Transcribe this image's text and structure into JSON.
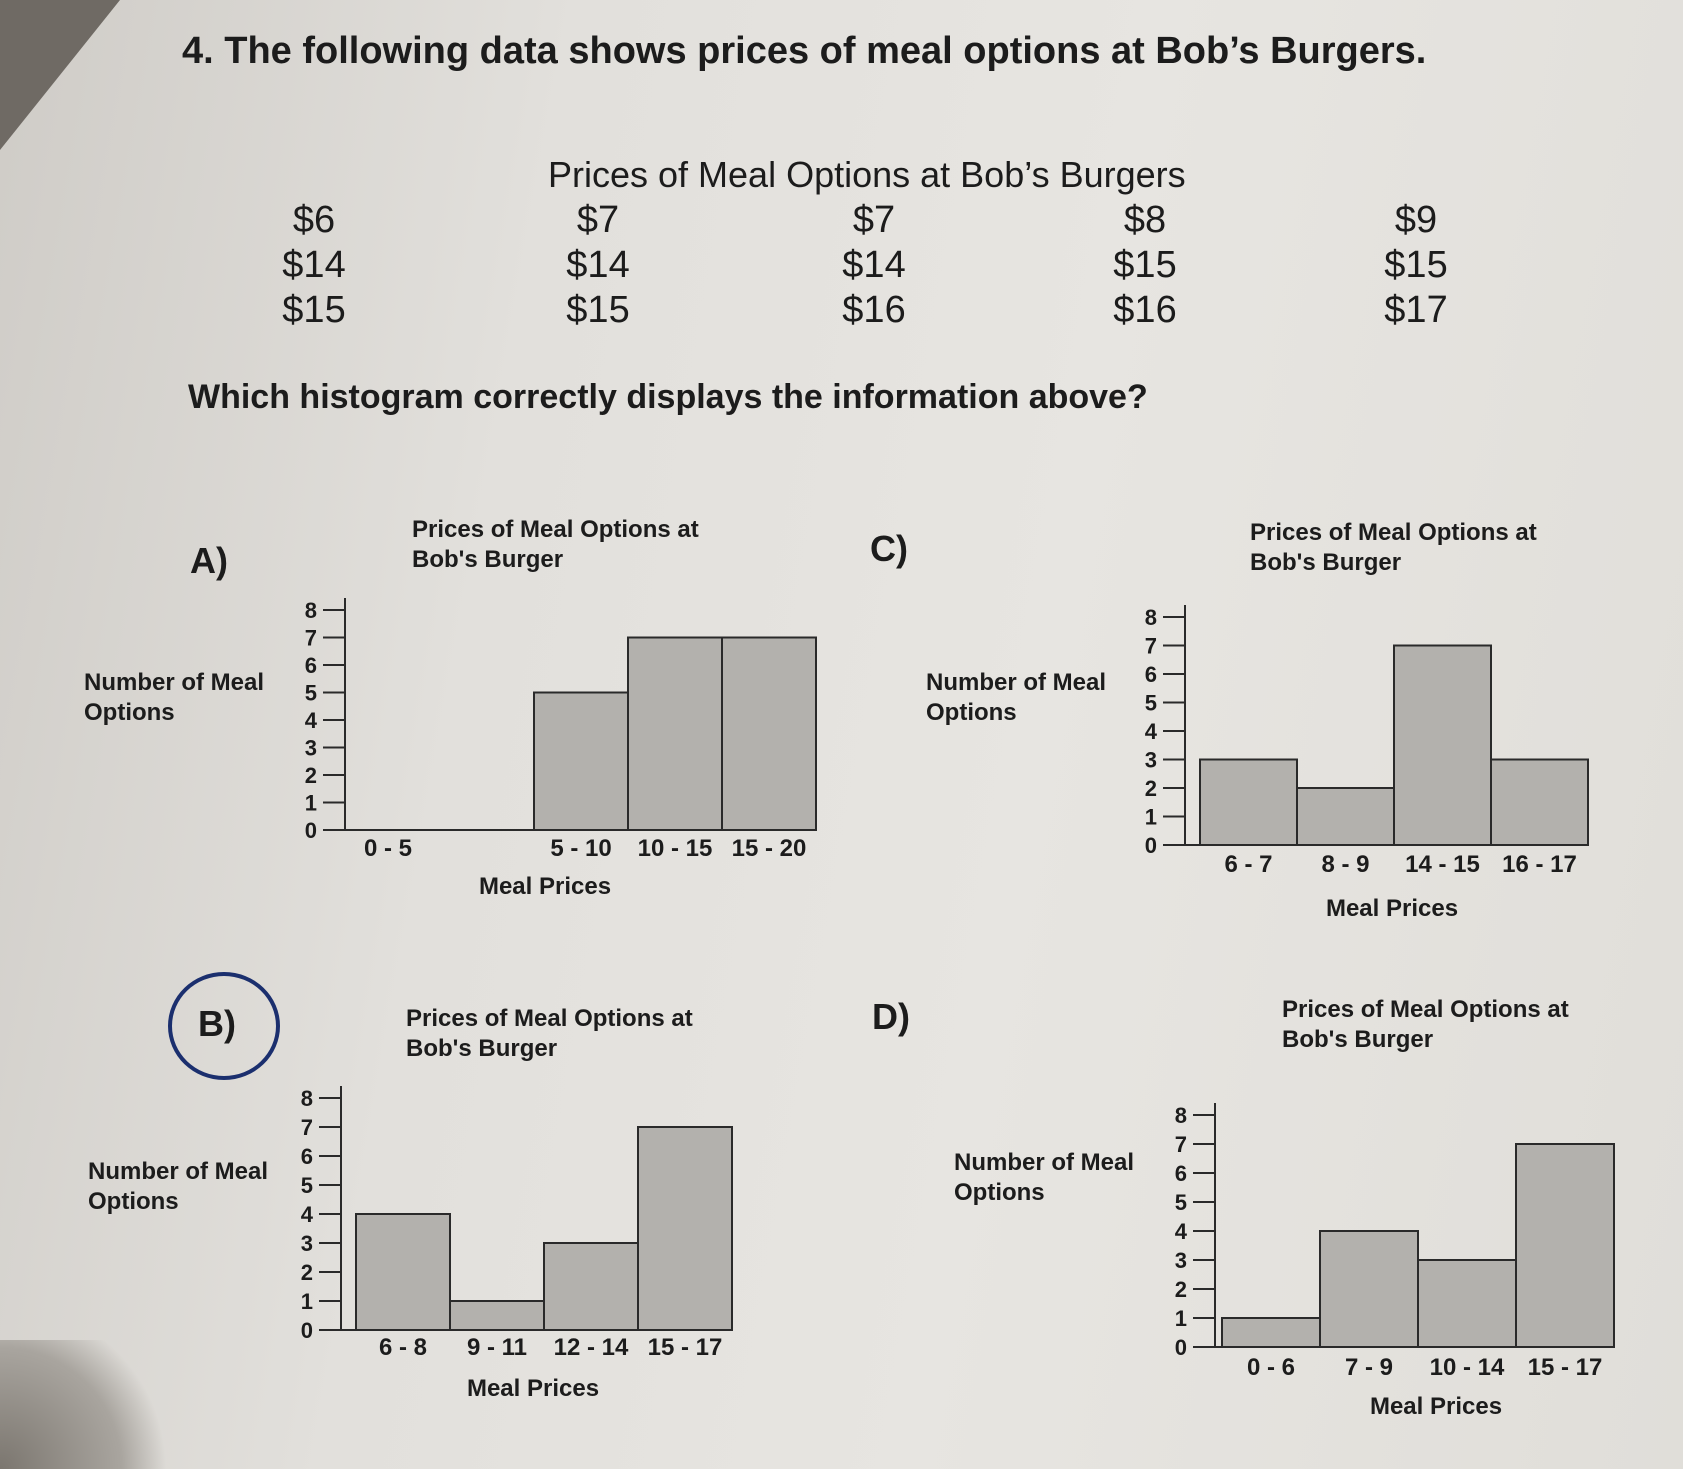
{
  "question": {
    "text": "4. The following data shows prices of meal options at Bob’s Burgers."
  },
  "table": {
    "title": "Prices of Meal Options at Bob’s Burgers",
    "columns": [
      [
        "$6",
        "$14",
        "$15"
      ],
      [
        "$7",
        "$14",
        "$15"
      ],
      [
        "$7",
        "$14",
        "$16"
      ],
      [
        "$8",
        "$15",
        "$16"
      ],
      [
        "$9",
        "$15",
        "$17"
      ]
    ]
  },
  "prompt": {
    "text": "Which histogram correctly displays the information above?"
  },
  "options": {
    "a": "A)",
    "b": "B)",
    "c": "C)",
    "d": "D)",
    "circled": "B"
  },
  "chart_data": [
    {
      "option": "A)",
      "type": "bar",
      "title": "Prices of Meal Options at Bob's Burger",
      "xlabel": "Meal Prices",
      "ylabel": "Number of Meal Options",
      "categories": [
        "0 - 5",
        "5 - 10",
        "10 - 15",
        "15 - 20"
      ],
      "values": [
        0,
        5,
        7,
        7
      ],
      "ylim": [
        0,
        8
      ],
      "yticks": [
        0,
        1,
        2,
        3,
        4,
        5,
        6,
        7,
        8
      ],
      "grid": false
    },
    {
      "option": "B)",
      "type": "bar",
      "title": "Prices of Meal Options at Bob's Burger",
      "xlabel": "Meal Prices",
      "ylabel": "Number of Meal Options",
      "categories": [
        "6 - 8",
        "9 - 11",
        "12 - 14",
        "15 - 17"
      ],
      "values": [
        4,
        1,
        3,
        7
      ],
      "ylim": [
        0,
        8
      ],
      "yticks": [
        0,
        1,
        2,
        3,
        4,
        5,
        6,
        7,
        8
      ],
      "grid": false
    },
    {
      "option": "C)",
      "type": "bar",
      "title": "Prices of Meal Options at Bob's Burger",
      "xlabel": "Meal Prices",
      "ylabel": "Number of Meal Options",
      "categories": [
        "6 - 7",
        "8 - 9",
        "14 - 15",
        "16 - 17"
      ],
      "values": [
        3,
        2,
        7,
        3
      ],
      "ylim": [
        0,
        8
      ],
      "yticks": [
        0,
        1,
        2,
        3,
        4,
        5,
        6,
        7,
        8
      ],
      "grid": false
    },
    {
      "option": "D)",
      "type": "bar",
      "title": "Prices of Meal Options at Bob's Burger",
      "xlabel": "Meal Prices",
      "ylabel": "Number of Meal Options",
      "categories": [
        "0 - 6",
        "7 - 9",
        "10 - 14",
        "15 - 17"
      ],
      "values": [
        1,
        4,
        3,
        7
      ],
      "ylim": [
        0,
        8
      ],
      "yticks": [
        0,
        1,
        2,
        3,
        4,
        5,
        6,
        7,
        8
      ],
      "grid": false
    }
  ],
  "colors": {
    "bar_fill": "#b3b1ad",
    "bar_stroke": "#2a2a2a",
    "circle": "#1b2f6e"
  }
}
